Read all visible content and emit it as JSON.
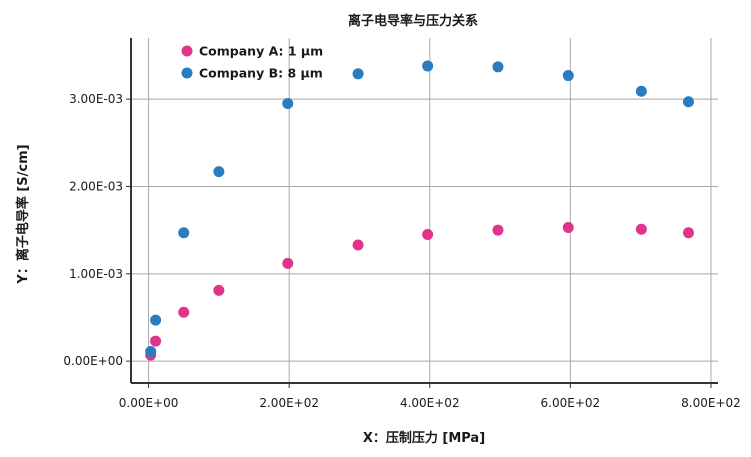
{
  "chart_data": {
    "type": "scatter",
    "title": "离子电导率与压力关系",
    "xlabel": "X：压制压力 [MPa]",
    "ylabel": "Y：离子电导率 [S/cm]",
    "xlim": [
      -25,
      810
    ],
    "ylim": [
      -0.00025,
      0.0037
    ],
    "x_ticks": [
      0,
      200,
      400,
      600,
      800
    ],
    "x_tick_labels": [
      "0.00E+00",
      "2.00E+02",
      "4.00E+02",
      "6.00E+02",
      "8.00E+02"
    ],
    "y_ticks": [
      0,
      0.001,
      0.002,
      0.003
    ],
    "y_tick_labels": [
      "0.00E+00",
      "1.00E-03",
      "2.00E-03",
      "3.00E-03"
    ],
    "grid": true,
    "legend_position": "top-left",
    "series": [
      {
        "name": "Company A: 1 μm",
        "color": "#e0338a",
        "points": [
          {
            "x": 3,
            "y": 7e-05
          },
          {
            "x": 10,
            "y": 0.00023
          },
          {
            "x": 50,
            "y": 0.00056
          },
          {
            "x": 100,
            "y": 0.00081
          },
          {
            "x": 198,
            "y": 0.00112
          },
          {
            "x": 298,
            "y": 0.00133
          },
          {
            "x": 397,
            "y": 0.00145
          },
          {
            "x": 497,
            "y": 0.0015
          },
          {
            "x": 597,
            "y": 0.00153
          },
          {
            "x": 701,
            "y": 0.00151
          },
          {
            "x": 768,
            "y": 0.00147
          }
        ]
      },
      {
        "name": "Company B: 8 μm",
        "color": "#2a7bbf",
        "points": [
          {
            "x": 3,
            "y": 0.00011
          },
          {
            "x": 10,
            "y": 0.00047
          },
          {
            "x": 50,
            "y": 0.00147
          },
          {
            "x": 100,
            "y": 0.00217
          },
          {
            "x": 198,
            "y": 0.00295
          },
          {
            "x": 298,
            "y": 0.00329
          },
          {
            "x": 397,
            "y": 0.00338
          },
          {
            "x": 497,
            "y": 0.00337
          },
          {
            "x": 597,
            "y": 0.00327
          },
          {
            "x": 701,
            "y": 0.00309
          },
          {
            "x": 768,
            "y": 0.00297
          }
        ]
      }
    ]
  }
}
